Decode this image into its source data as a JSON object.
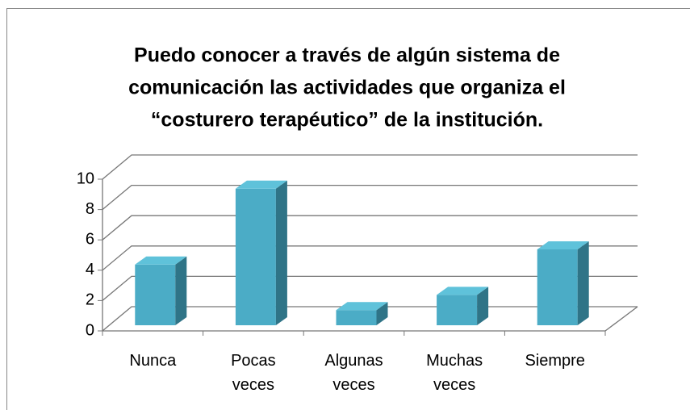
{
  "chart_data": {
    "type": "bar3d",
    "title": [
      "Puedo conocer a través de algún sistema de",
      "comunicación las actividades que organiza el",
      "“costurero terapéutico” de la institución."
    ],
    "categories": [
      "Nunca",
      "Pocas veces",
      "Algunas veces",
      "Muchas veces",
      "Siempre"
    ],
    "values": [
      4,
      9,
      1,
      2,
      5
    ],
    "color": "#4bacc6",
    "ylim": [
      0,
      10
    ],
    "yticks": [
      0,
      2,
      4,
      6,
      8,
      10
    ],
    "grid": true
  }
}
